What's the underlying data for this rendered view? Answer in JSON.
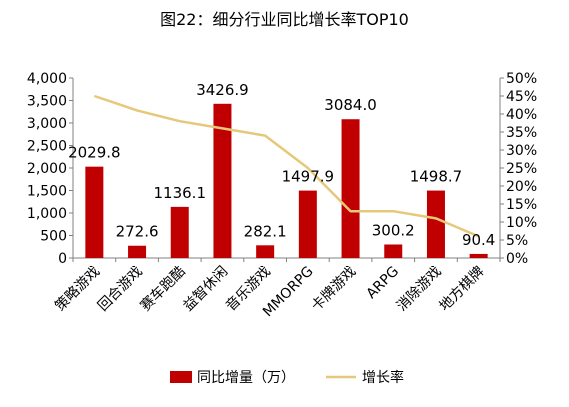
{
  "chart_data": {
    "type": "bar",
    "title": "图22：细分行业同比增长率TOP10",
    "categories": [
      "策略游戏",
      "回合游戏",
      "赛车跑酷",
      "益智休闲",
      "音乐游戏",
      "MMORPG",
      "卡牌游戏",
      "ARPG",
      "消除游戏",
      "地方棋牌"
    ],
    "series": [
      {
        "name": "同比增量（万）",
        "type": "bar",
        "axis": "left",
        "color": "#C00000",
        "values": [
          2029.8,
          272.6,
          1136.1,
          3426.9,
          282.1,
          1497.9,
          3084.0,
          300.2,
          1498.7,
          90.4
        ],
        "labels": [
          "2029.8",
          "272.6",
          "1136.1",
          "3426.9",
          "282.1",
          "1497.9",
          "3084.0",
          "300.2",
          "1498.7",
          "90.4"
        ]
      },
      {
        "name": "增长率",
        "type": "line",
        "axis": "right",
        "color": "#E6C87A",
        "values": [
          0.45,
          0.41,
          0.38,
          0.36,
          0.34,
          0.25,
          0.13,
          0.13,
          0.11,
          0.06
        ]
      }
    ],
    "ylim_left": [
      0,
      4000
    ],
    "ylim_right": [
      0,
      0.5
    ],
    "yticks_left": [
      "0",
      "500",
      "1,000",
      "1,500",
      "2,000",
      "2,500",
      "3,000",
      "3,500",
      "4,000"
    ],
    "yticks_right": [
      "0%",
      "5%",
      "10%",
      "15%",
      "20%",
      "25%",
      "30%",
      "35%",
      "40%",
      "45%",
      "50%"
    ],
    "grid": false,
    "legend_position": "bottom"
  }
}
